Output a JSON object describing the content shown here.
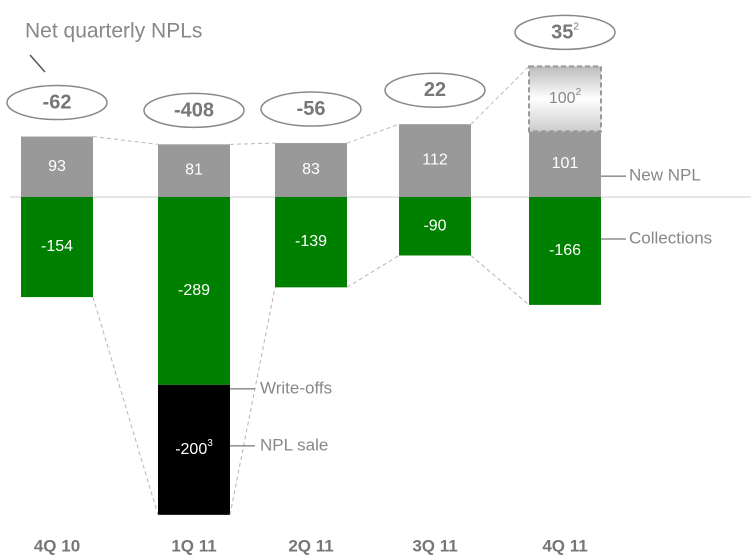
{
  "chart_data": {
    "type": "bar",
    "stacked": true,
    "title": "Net quarterly NPLs",
    "categories": [
      "4Q 10",
      "1Q 11",
      "2Q 11",
      "3Q 11",
      "4Q 11"
    ],
    "series": [
      {
        "name": "New NPL",
        "color": "#999999",
        "values": [
          93,
          81,
          83,
          112,
          101
        ]
      },
      {
        "name": "Collections",
        "color": "#008000",
        "values": [
          -154,
          -289,
          -139,
          -90,
          -166
        ]
      },
      {
        "name": "NPL sale",
        "color": "#000000",
        "values": [
          null,
          -200,
          null,
          null,
          null
        ],
        "value_notes": [
          null,
          "3",
          null,
          null,
          null
        ]
      },
      {
        "color": "#d9d9d9",
        "dashed": true,
        "values": [
          null,
          null,
          null,
          null,
          100
        ],
        "value_notes": [
          null,
          null,
          null,
          null,
          "2"
        ]
      }
    ],
    "net": {
      "values": [
        -62,
        -408,
        -56,
        22,
        35
      ],
      "value_notes": [
        null,
        null,
        null,
        null,
        "2"
      ]
    },
    "annotations": [
      "Write-offs"
    ]
  }
}
